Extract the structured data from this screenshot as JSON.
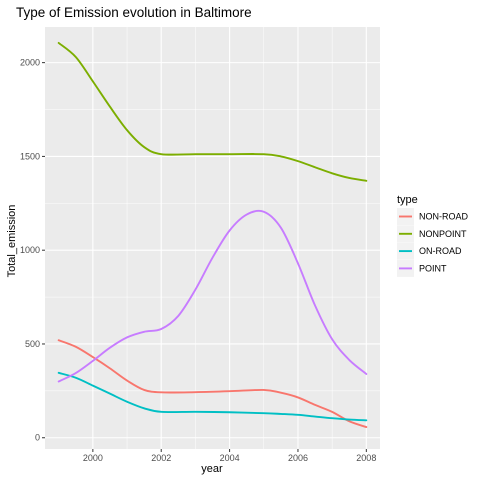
{
  "chart_data": {
    "type": "line",
    "title": "Type of Emission evolution in Baltimore",
    "xlabel": "year",
    "ylabel": "Total_emission",
    "xlim": [
      1998.6,
      2008.4
    ],
    "ylim": [
      -60,
      2190
    ],
    "xticks": [
      2000,
      2002,
      2004,
      2006,
      2008
    ],
    "yticks": [
      0,
      500,
      1000,
      1500,
      2000
    ],
    "grid": true,
    "legend_title": "type",
    "legend_position": "right",
    "series": [
      {
        "name": "NON-ROAD",
        "color": "#F8766D",
        "x": [
          1999,
          1999.5,
          2000,
          2000.5,
          2001,
          2001.5,
          2002,
          2003,
          2004,
          2005,
          2005.5,
          2006,
          2006.5,
          2007,
          2007.5,
          2008
        ],
        "y": [
          520,
          485,
          430,
          370,
          305,
          255,
          242,
          243,
          248,
          255,
          240,
          215,
          175,
          138,
          88,
          57
        ]
      },
      {
        "name": "NONPOINT",
        "color": "#7CAE00",
        "x": [
          1999,
          1999.5,
          2000,
          2000.5,
          2001,
          2001.5,
          2002,
          2003,
          2004,
          2005,
          2005.5,
          2006,
          2006.5,
          2007,
          2007.5,
          2008
        ],
        "y": [
          2105,
          2030,
          1900,
          1765,
          1640,
          1550,
          1512,
          1512,
          1512,
          1512,
          1500,
          1475,
          1442,
          1410,
          1385,
          1370
        ]
      },
      {
        "name": "ON-ROAD",
        "color": "#00BFC4",
        "x": [
          1999,
          1999.5,
          2000,
          2000.5,
          2001,
          2001.5,
          2002,
          2003,
          2004,
          2005,
          2005.5,
          2006,
          2006.5,
          2007,
          2007.5,
          2008
        ],
        "y": [
          346,
          320,
          278,
          235,
          192,
          157,
          138,
          138,
          136,
          131,
          127,
          122,
          113,
          104,
          97,
          93
        ]
      },
      {
        "name": "POINT",
        "color": "#C77CFF",
        "x": [
          1999,
          1999.5,
          2000,
          2000.5,
          2001,
          2001.5,
          2002,
          2002.5,
          2003,
          2003.5,
          2004,
          2004.5,
          2005,
          2005.5,
          2006,
          2006.5,
          2007,
          2007.5,
          2008
        ],
        "y": [
          300,
          345,
          410,
          480,
          535,
          565,
          580,
          650,
          790,
          960,
          1105,
          1190,
          1205,
          1120,
          930,
          705,
          525,
          415,
          340
        ]
      }
    ]
  }
}
